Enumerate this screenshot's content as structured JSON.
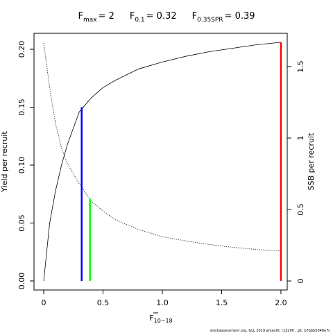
{
  "chart_data": {
    "type": "line",
    "reference_points": [
      {
        "label": "F",
        "subscript": "max",
        "value": 2,
        "value_label": "= 2",
        "color": "#ff0000",
        "height": 0.206
      },
      {
        "label": "F",
        "subscript": "0.1",
        "value": 0.32,
        "value_label": "= 0.32",
        "color": "#0000ff",
        "height": 0.15
      },
      {
        "label": "F",
        "subscript": "0.35SPR",
        "value": 0.39,
        "value_label": "= 0.39",
        "color": "#00ff00",
        "height": 0.071
      }
    ],
    "xlabel": "F",
    "xlabel_subscript": "10−18",
    "ylabel": "Yield per recruit",
    "y2label": "SSB per recruit",
    "footnote": "stockassessment.org, GLL 2019 antest6, r12290 , git: b7bbb5048e7c",
    "x": [
      0,
      0.05,
      0.1,
      0.15,
      0.2,
      0.3,
      0.4,
      0.5,
      0.6,
      0.8,
      1.0,
      1.2,
      1.4,
      1.6,
      1.8,
      2.0
    ],
    "series": [
      {
        "color": "#000000",
        "dash": "solid",
        "axis": "y",
        "values": [
          0,
          0.05,
          0.078,
          0.1,
          0.118,
          0.146,
          0.158,
          0.167,
          0.173,
          0.183,
          0.189,
          0.194,
          0.198,
          0.201,
          0.204,
          0.206
        ]
      },
      {
        "color": "#000000",
        "dash": "dotted",
        "axis": "y2",
        "values": [
          1.665,
          1.35,
          1.1,
          0.93,
          0.82,
          0.68,
          0.56,
          0.49,
          0.43,
          0.36,
          0.31,
          0.28,
          0.255,
          0.235,
          0.22,
          0.21
        ]
      }
    ],
    "xlim": [
      -0.082,
      2.053
    ],
    "ylim": [
      -0.0078,
      0.2138
    ],
    "y2lim": [
      -0.063,
      1.733
    ],
    "xticks": [
      0,
      {
        "value": 0.5,
        "label": "0.5"
      },
      {
        "value": 1,
        "label": "1.0"
      },
      {
        "value": 1.5,
        "label": "1.5"
      },
      {
        "value": 2,
        "label": "2.0"
      }
    ],
    "yticks": [
      {
        "value": 0,
        "label": "0.00"
      },
      {
        "value": 0.05,
        "label": "0.05"
      },
      {
        "value": 0.1,
        "label": "0.10"
      },
      {
        "value": 0.15,
        "label": "0.15"
      },
      {
        "value": 0.2,
        "label": "0.20"
      }
    ],
    "y2ticks": [
      0,
      0.5,
      1,
      1.5
    ]
  }
}
